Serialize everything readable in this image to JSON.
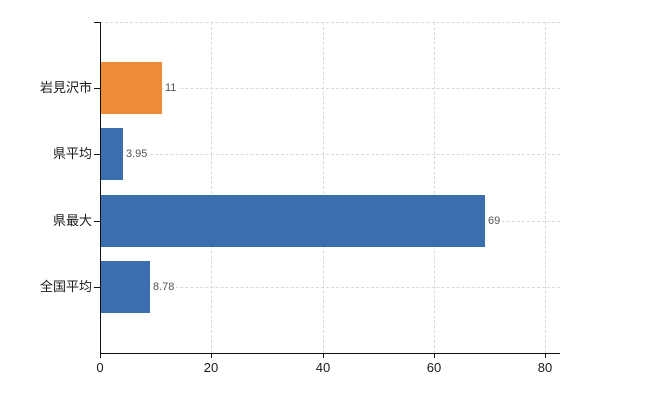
{
  "chart_data": {
    "type": "bar",
    "orientation": "horizontal",
    "title": "",
    "xlabel": "",
    "ylabel": "",
    "categories": [
      "岩見沢市",
      "県平均",
      "県最大",
      "全国平均"
    ],
    "values": [
      11,
      3.95,
      69,
      8.78
    ],
    "value_labels": [
      "11",
      "3.95",
      "69",
      "8.78"
    ],
    "bar_colors": [
      "#ee8b36",
      "#3b6eae",
      "#3b6eae",
      "#3b6eae"
    ],
    "x_ticks": [
      0,
      20,
      40,
      60,
      80
    ],
    "x_tick_labels": [
      "0",
      "20",
      "40",
      "60",
      "80"
    ],
    "xlim": [
      0,
      82.7
    ],
    "grid": "dashed",
    "gridline_color": "#d9d9d9",
    "axis_color": "#111111",
    "value_label_color": "#555555",
    "category_label_color": "#1a1a1a",
    "background": "#ffffff",
    "legend": "none"
  }
}
